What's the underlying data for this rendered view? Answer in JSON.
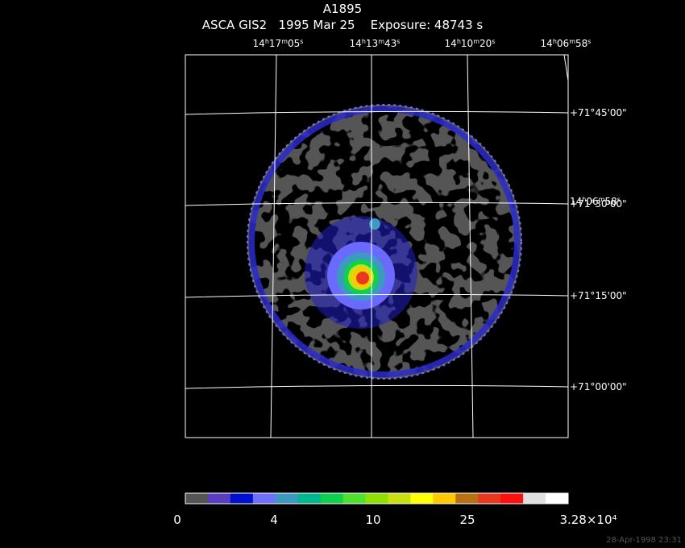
{
  "header": {
    "title": "A1895",
    "subtitle": "ASCA GIS2   1995 Mar 25    Exposure: 48743 s"
  },
  "axes": {
    "ra_labels": [
      "14h17m05s",
      "14h13m43s",
      "14h10m20s",
      "14h06m58s"
    ],
    "ra_overlap_label": "14h06m58s",
    "dec_labels": [
      "+71°45'00\"",
      "+71°30'00\"",
      "+71°15'00\"",
      "+71°00'00\""
    ]
  },
  "colorbar": {
    "colors": [
      "#555555",
      "#5a3cc0",
      "#0010d0",
      "#7070ff",
      "#3c9ac0",
      "#00b890",
      "#10d050",
      "#50e030",
      "#90e000",
      "#c8e010",
      "#ffff00",
      "#ffc800",
      "#b87010",
      "#e83820",
      "#ff1010",
      "#e0e0e0",
      "#ffffff"
    ],
    "labels": [
      "0",
      "4",
      "10",
      "25",
      "3.28×10⁴"
    ]
  },
  "footer": {
    "timestamp": "28-Apr-1998 23:31"
  }
}
